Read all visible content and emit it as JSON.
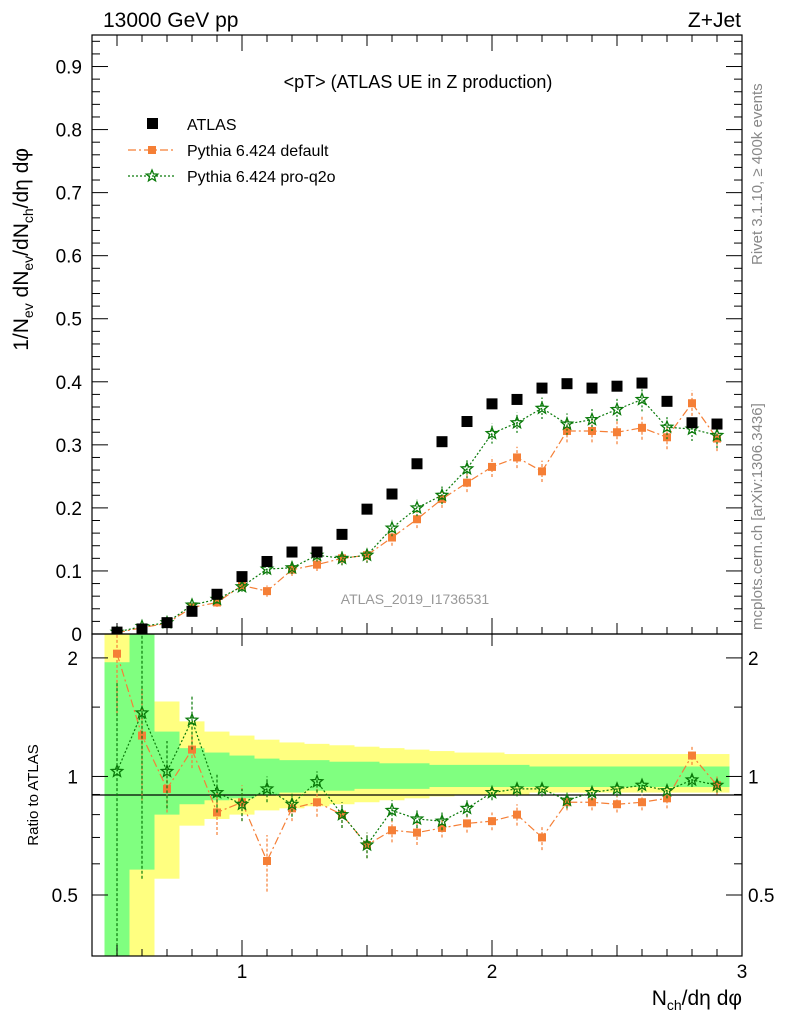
{
  "header": {
    "left": "13000 GeV pp",
    "right": "Z+Jet"
  },
  "side": {
    "top": "Rivet 3.1.10, ≥ 400k events",
    "bottom": "mcplots.cern.ch [arXiv:1306.3436]"
  },
  "colors": {
    "atlas": "#000000",
    "pythia_default": "#f57f36",
    "pythia_proq2o": "#0a7a0a",
    "band_yellow": "#ffff80",
    "band_green": "#80ff80"
  },
  "chart_data": {
    "type": "scatter",
    "title": "<pT> (ATLAS UE in Z production)",
    "watermark": "ATLAS_2019_I1736531",
    "ylabel": "1/N_ev dN_ev/dN_ch/dη dφ",
    "xlabel": "N_ch/dη dφ",
    "ratio_ylabel": "Ratio to ATLAS",
    "xlim": [
      0.4,
      3.0
    ],
    "ylim": [
      0,
      0.95
    ],
    "ratio_ylim": [
      0.35,
      2.3
    ],
    "main_y_ticks": [
      {
        "v": 0,
        "t": "0"
      },
      {
        "v": 0.1,
        "t": "0.1"
      },
      {
        "v": 0.2,
        "t": "0.2"
      },
      {
        "v": 0.3,
        "t": "0.3"
      },
      {
        "v": 0.4,
        "t": "0.4"
      },
      {
        "v": 0.5,
        "t": "0.5"
      },
      {
        "v": 0.6,
        "t": "0.6"
      },
      {
        "v": 0.7,
        "t": "0.7"
      },
      {
        "v": 0.8,
        "t": "0.8"
      },
      {
        "v": 0.9,
        "t": "0.9"
      }
    ],
    "ratio_y_ticks": [
      {
        "v": 0.5,
        "t": "0.5"
      },
      {
        "v": 1,
        "t": "1"
      },
      {
        "v": 2,
        "t": "2"
      }
    ],
    "x_ticks": [
      {
        "v": 1,
        "t": "1"
      },
      {
        "v": 2,
        "t": "2"
      },
      {
        "v": 3,
        "t": "3"
      }
    ],
    "x": [
      0.5,
      0.6,
      0.7,
      0.8,
      0.9,
      1.0,
      1.1,
      1.2,
      1.3,
      1.4,
      1.5,
      1.6,
      1.7,
      1.8,
      1.9,
      2.0,
      2.1,
      2.2,
      2.3,
      2.4,
      2.5,
      2.6,
      2.7,
      2.8,
      2.9
    ],
    "bands": [
      {
        "x0": 0.45,
        "x1": 0.55,
        "y_lo": 0.3,
        "y_hi": 2.3,
        "g_lo": 0.3,
        "g_hi": 1.95
      },
      {
        "x0": 0.55,
        "x1": 0.65,
        "y_lo": 0.3,
        "y_hi": 2.3,
        "g_lo": 0.58,
        "g_hi": 2.3
      },
      {
        "x0": 0.65,
        "x1": 0.75,
        "y_lo": 0.55,
        "y_hi": 1.55,
        "g_lo": 0.8,
        "g_hi": 1.3
      },
      {
        "x0": 0.75,
        "x1": 0.85,
        "y_lo": 0.75,
        "y_hi": 1.38,
        "g_lo": 0.85,
        "g_hi": 1.18
      },
      {
        "x0": 0.85,
        "x1": 0.95,
        "y_lo": 0.78,
        "y_hi": 1.3,
        "g_lo": 0.87,
        "g_hi": 1.15
      },
      {
        "x0": 0.95,
        "x1": 1.05,
        "y_lo": 0.8,
        "y_hi": 1.27,
        "g_lo": 0.88,
        "g_hi": 1.13
      },
      {
        "x0": 1.05,
        "x1": 1.15,
        "y_lo": 0.82,
        "y_hi": 1.24,
        "g_lo": 0.9,
        "g_hi": 1.11
      },
      {
        "x0": 1.15,
        "x1": 1.25,
        "y_lo": 0.83,
        "y_hi": 1.22,
        "g_lo": 0.91,
        "g_hi": 1.1
      },
      {
        "x0": 1.25,
        "x1": 1.35,
        "y_lo": 0.84,
        "y_hi": 1.21,
        "g_lo": 0.92,
        "g_hi": 1.1
      },
      {
        "x0": 1.35,
        "x1": 1.45,
        "y_lo": 0.85,
        "y_hi": 1.2,
        "g_lo": 0.92,
        "g_hi": 1.09
      },
      {
        "x0": 1.45,
        "x1": 1.55,
        "y_lo": 0.86,
        "y_hi": 1.19,
        "g_lo": 0.93,
        "g_hi": 1.09
      },
      {
        "x0": 1.55,
        "x1": 1.65,
        "y_lo": 0.87,
        "y_hi": 1.18,
        "g_lo": 0.93,
        "g_hi": 1.08
      },
      {
        "x0": 1.65,
        "x1": 1.75,
        "y_lo": 0.88,
        "y_hi": 1.17,
        "g_lo": 0.93,
        "g_hi": 1.08
      },
      {
        "x0": 1.75,
        "x1": 1.85,
        "y_lo": 0.89,
        "y_hi": 1.16,
        "g_lo": 0.94,
        "g_hi": 1.07
      },
      {
        "x0": 1.85,
        "x1": 1.95,
        "y_lo": 0.9,
        "y_hi": 1.15,
        "g_lo": 0.94,
        "g_hi": 1.07
      },
      {
        "x0": 1.95,
        "x1": 2.05,
        "y_lo": 0.9,
        "y_hi": 1.15,
        "g_lo": 0.94,
        "g_hi": 1.07
      },
      {
        "x0": 2.05,
        "x1": 2.15,
        "y_lo": 0.9,
        "y_hi": 1.14,
        "g_lo": 0.94,
        "g_hi": 1.07
      },
      {
        "x0": 2.15,
        "x1": 2.25,
        "y_lo": 0.91,
        "y_hi": 1.14,
        "g_lo": 0.94,
        "g_hi": 1.06
      },
      {
        "x0": 2.25,
        "x1": 2.35,
        "y_lo": 0.91,
        "y_hi": 1.14,
        "g_lo": 0.94,
        "g_hi": 1.06
      },
      {
        "x0": 2.35,
        "x1": 2.45,
        "y_lo": 0.91,
        "y_hi": 1.14,
        "g_lo": 0.94,
        "g_hi": 1.06
      },
      {
        "x0": 2.45,
        "x1": 2.55,
        "y_lo": 0.91,
        "y_hi": 1.14,
        "g_lo": 0.94,
        "g_hi": 1.06
      },
      {
        "x0": 2.55,
        "x1": 2.65,
        "y_lo": 0.91,
        "y_hi": 1.14,
        "g_lo": 0.94,
        "g_hi": 1.06
      },
      {
        "x0": 2.65,
        "x1": 2.75,
        "y_lo": 0.91,
        "y_hi": 1.14,
        "g_lo": 0.94,
        "g_hi": 1.06
      },
      {
        "x0": 2.75,
        "x1": 2.85,
        "y_lo": 0.91,
        "y_hi": 1.14,
        "g_lo": 0.94,
        "g_hi": 1.06
      },
      {
        "x0": 2.85,
        "x1": 2.95,
        "y_lo": 0.91,
        "y_hi": 1.14,
        "g_lo": 0.94,
        "g_hi": 1.06
      }
    ],
    "series": [
      {
        "name": "ATLAS",
        "marker": "square",
        "values": [
          0.003,
          0.008,
          0.018,
          0.036,
          0.063,
          0.091,
          0.115,
          0.13,
          0.13,
          0.158,
          0.198,
          0.222,
          0.27,
          0.305,
          0.337,
          0.365,
          0.372,
          0.39,
          0.397,
          0.39,
          0.393,
          0.398,
          0.369,
          0.335,
          0.333
        ]
      },
      {
        "name": "Pythia 6.424 default",
        "marker": "filled-square",
        "line": "dash-dot",
        "values": [
          0.002,
          0.01,
          0.017,
          0.042,
          0.05,
          0.077,
          0.068,
          0.102,
          0.11,
          0.12,
          0.125,
          0.153,
          0.182,
          0.214,
          0.24,
          0.265,
          0.28,
          0.258,
          0.322,
          0.322,
          0.32,
          0.327,
          0.312,
          0.366,
          0.31
        ],
        "errors": [
          0.002,
          0.003,
          0.004,
          0.006,
          0.007,
          0.008,
          0.009,
          0.01,
          0.01,
          0.011,
          0.012,
          0.013,
          0.014,
          0.014,
          0.015,
          0.016,
          0.017,
          0.017,
          0.018,
          0.018,
          0.019,
          0.019,
          0.019,
          0.02,
          0.02
        ],
        "ratio": [
          2.05,
          1.27,
          0.93,
          1.17,
          0.81,
          0.86,
          0.61,
          0.83,
          0.86,
          0.8,
          0.67,
          0.73,
          0.72,
          0.74,
          0.76,
          0.77,
          0.8,
          0.7,
          0.86,
          0.86,
          0.85,
          0.86,
          0.88,
          1.13,
          0.95
        ],
        "ratio_errors": [
          0.6,
          0.4,
          0.12,
          0.12,
          0.1,
          0.09,
          0.1,
          0.06,
          0.07,
          0.06,
          0.05,
          0.05,
          0.05,
          0.04,
          0.04,
          0.04,
          0.05,
          0.05,
          0.04,
          0.04,
          0.04,
          0.04,
          0.05,
          0.06,
          0.05
        ]
      },
      {
        "name": "Pythia 6.424 pro-q2o",
        "marker": "star",
        "line": "dotted",
        "values": [
          0.003,
          0.012,
          0.018,
          0.046,
          0.055,
          0.075,
          0.103,
          0.105,
          0.125,
          0.12,
          0.125,
          0.168,
          0.2,
          0.22,
          0.262,
          0.318,
          0.335,
          0.358,
          0.333,
          0.34,
          0.356,
          0.372,
          0.328,
          0.325,
          0.315
        ],
        "errors": [
          0.002,
          0.004,
          0.005,
          0.006,
          0.007,
          0.008,
          0.009,
          0.01,
          0.01,
          0.011,
          0.012,
          0.013,
          0.013,
          0.014,
          0.015,
          0.016,
          0.016,
          0.017,
          0.017,
          0.018,
          0.018,
          0.019,
          0.019,
          0.019,
          0.02
        ],
        "ratio": [
          1.03,
          1.45,
          1.03,
          1.39,
          0.91,
          0.85,
          0.93,
          0.85,
          0.97,
          0.8,
          0.67,
          0.82,
          0.78,
          0.77,
          0.83,
          0.91,
          0.93,
          0.93,
          0.87,
          0.91,
          0.93,
          0.95,
          0.92,
          0.98,
          0.95
        ],
        "ratio_errors": [
          0.7,
          0.9,
          0.2,
          0.22,
          0.1,
          0.08,
          0.07,
          0.06,
          0.06,
          0.06,
          0.05,
          0.05,
          0.04,
          0.04,
          0.04,
          0.04,
          0.04,
          0.04,
          0.04,
          0.04,
          0.04,
          0.04,
          0.04,
          0.04,
          0.04
        ]
      }
    ],
    "legend": [
      "ATLAS",
      "Pythia 6.424 default",
      "Pythia 6.424 pro-q2o"
    ]
  }
}
